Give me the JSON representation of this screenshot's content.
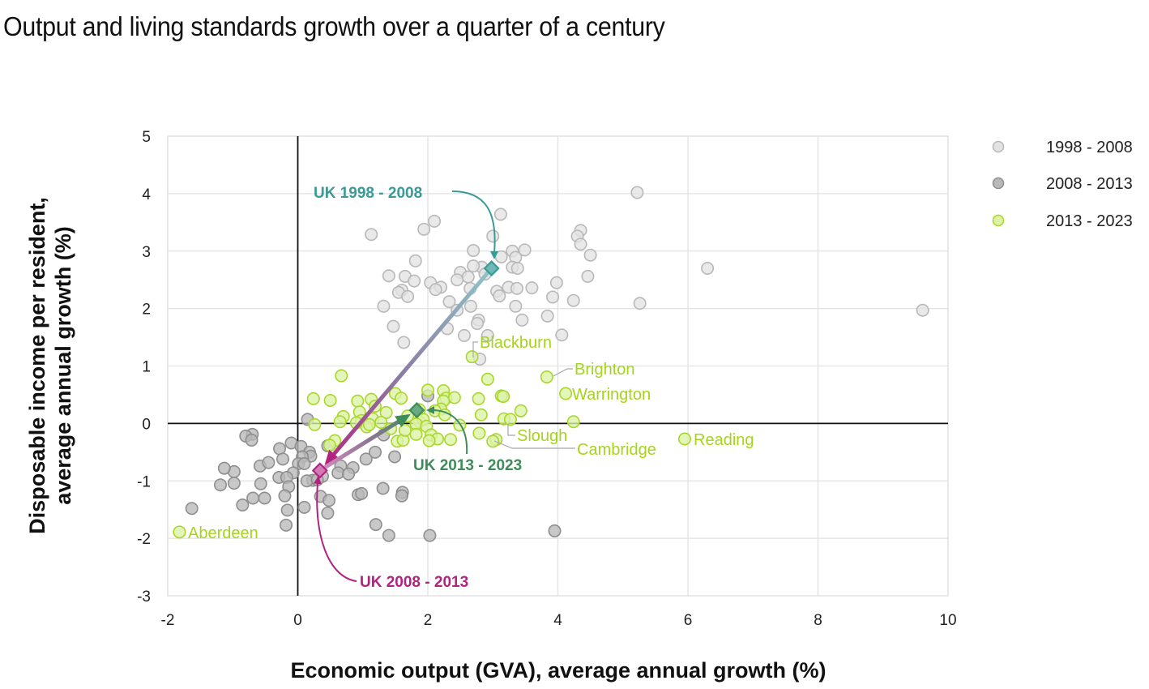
{
  "page": {
    "title": "Output and living standards growth over a quarter of a century"
  },
  "chart_data": {
    "type": "scatter",
    "title": "Output and living standards growth over a quarter of a century",
    "xlabel": "Economic output (GVA), average annual growth (%)",
    "ylabel_lines": [
      "Disposable income per resident,",
      "average annual growth (%)"
    ],
    "xlim": [
      -2,
      10
    ],
    "ylim": [
      -3,
      5
    ],
    "xticks": [
      -2,
      0,
      2,
      4,
      6,
      8,
      10
    ],
    "yticks": [
      5,
      4,
      3,
      2,
      1,
      0,
      -1,
      -2,
      -3
    ],
    "grid": true,
    "legend_position": "top-right",
    "colors": {
      "s1998_fill": "#e3e3e3",
      "s1998_stroke": "#b8b8b8",
      "s2008_fill": "#b9b9b9",
      "s2008_stroke": "#8e8e8e",
      "s2013_fill": "#dcf2a6",
      "s2013_stroke": "#a8d62a",
      "uk1998": "#3a9a96",
      "uk2008": "#b2237f",
      "uk2013": "#3d8c59",
      "label_green": "#a6d41a"
    },
    "series": [
      {
        "name": "1998 - 2008",
        "key": "s1998",
        "points": [
          [
            5.22,
            4.02
          ],
          [
            3.12,
            3.64
          ],
          [
            4.35,
            3.36
          ],
          [
            2.1,
            3.52
          ],
          [
            1.13,
            3.29
          ],
          [
            1.94,
            3.38
          ],
          [
            4.3,
            3.26
          ],
          [
            4.35,
            3.12
          ],
          [
            3.0,
            3.26
          ],
          [
            4.5,
            2.93
          ],
          [
            3.3,
            3.0
          ],
          [
            3.49,
            3.02
          ],
          [
            2.7,
            3.01
          ],
          [
            3.35,
            2.89
          ],
          [
            3.13,
            2.9
          ],
          [
            3.3,
            2.72
          ],
          [
            2.83,
            2.72
          ],
          [
            2.7,
            2.74
          ],
          [
            3.38,
            2.7
          ],
          [
            1.81,
            2.83
          ],
          [
            6.3,
            2.7
          ],
          [
            1.4,
            2.57
          ],
          [
            1.65,
            2.56
          ],
          [
            2.5,
            2.63
          ],
          [
            2.62,
            2.55
          ],
          [
            2.45,
            2.5
          ],
          [
            1.79,
            2.48
          ],
          [
            2.04,
            2.45
          ],
          [
            2.88,
            2.6
          ],
          [
            4.46,
            2.56
          ],
          [
            3.98,
            2.45
          ],
          [
            2.65,
            2.35
          ],
          [
            2.2,
            2.37
          ],
          [
            2.12,
            2.33
          ],
          [
            1.6,
            2.32
          ],
          [
            1.55,
            2.28
          ],
          [
            3.24,
            2.37
          ],
          [
            3.37,
            2.35
          ],
          [
            3.6,
            2.36
          ],
          [
            3.06,
            2.3
          ],
          [
            3.1,
            2.22
          ],
          [
            1.69,
            2.21
          ],
          [
            3.92,
            2.2
          ],
          [
            4.24,
            2.14
          ],
          [
            5.26,
            2.09
          ],
          [
            2.33,
            2.12
          ],
          [
            1.32,
            2.04
          ],
          [
            2.45,
            1.97
          ],
          [
            2.66,
            2.04
          ],
          [
            3.35,
            2.04
          ],
          [
            3.84,
            1.87
          ],
          [
            2.78,
            1.8
          ],
          [
            3.45,
            1.8
          ],
          [
            2.76,
            1.74
          ],
          [
            9.61,
            1.97
          ],
          [
            1.47,
            1.69
          ],
          [
            2.3,
            1.65
          ],
          [
            4.06,
            1.54
          ],
          [
            2.92,
            1.53
          ],
          [
            2.56,
            1.53
          ],
          [
            1.63,
            1.41
          ],
          [
            2.8,
            1.12
          ]
        ]
      },
      {
        "name": "2008 - 2013",
        "key": "s2008",
        "points": [
          [
            2.0,
            0.48
          ],
          [
            0.15,
            0.07
          ],
          [
            -0.7,
            -0.19
          ],
          [
            -0.8,
            -0.22
          ],
          [
            -0.71,
            -0.29
          ],
          [
            -0.1,
            -0.34
          ],
          [
            -0.28,
            -0.44
          ],
          [
            0.05,
            -0.4
          ],
          [
            0.46,
            -0.39
          ],
          [
            0.18,
            -0.5
          ],
          [
            0.2,
            -0.57
          ],
          [
            0.07,
            -0.58
          ],
          [
            -0.23,
            -0.62
          ],
          [
            -0.58,
            -0.74
          ],
          [
            -0.45,
            -0.68
          ],
          [
            0.01,
            -0.7
          ],
          [
            0.1,
            -0.7
          ],
          [
            0.66,
            -0.74
          ],
          [
            0.85,
            -0.77
          ],
          [
            -0.98,
            -0.84
          ],
          [
            -1.13,
            -0.78
          ],
          [
            -0.07,
            -0.86
          ],
          [
            -0.29,
            -0.94
          ],
          [
            -0.17,
            -0.94
          ],
          [
            0.23,
            -0.99
          ],
          [
            0.62,
            -0.86
          ],
          [
            0.38,
            -0.92
          ],
          [
            0.78,
            -0.88
          ],
          [
            0.14,
            -1.0
          ],
          [
            -0.57,
            -1.05
          ],
          [
            -1.19,
            -1.07
          ],
          [
            -0.98,
            -1.04
          ],
          [
            -0.14,
            -1.1
          ],
          [
            -0.2,
            -1.26
          ],
          [
            -0.69,
            -1.3
          ],
          [
            0.35,
            -1.27
          ],
          [
            0.48,
            -1.34
          ],
          [
            -0.51,
            -1.3
          ],
          [
            0.93,
            -1.24
          ],
          [
            0.98,
            -1.22
          ],
          [
            1.31,
            -1.13
          ],
          [
            1.61,
            -1.2
          ],
          [
            1.6,
            -1.26
          ],
          [
            -0.85,
            -1.42
          ],
          [
            -1.63,
            -1.48
          ],
          [
            0.1,
            -1.46
          ],
          [
            0.46,
            -1.56
          ],
          [
            -0.16,
            -1.51
          ],
          [
            1.2,
            -1.76
          ],
          [
            -0.18,
            -1.77
          ],
          [
            1.4,
            -1.95
          ],
          [
            2.03,
            -1.95
          ],
          [
            3.95,
            -1.87
          ],
          [
            1.19,
            -0.5
          ],
          [
            1.49,
            -0.58
          ],
          [
            1.32,
            -0.2
          ],
          [
            0.3,
            -0.98
          ],
          [
            1.05,
            -0.62
          ]
        ]
      },
      {
        "name": "2013 - 2023",
        "key": "s2013",
        "points": [
          [
            2.68,
            1.16
          ],
          [
            3.83,
            0.81
          ],
          [
            0.67,
            0.83
          ],
          [
            4.12,
            0.52
          ],
          [
            2.92,
            0.77
          ],
          [
            2.0,
            0.58
          ],
          [
            2.24,
            0.57
          ],
          [
            1.5,
            0.52
          ],
          [
            1.59,
            0.44
          ],
          [
            2.28,
            0.44
          ],
          [
            1.13,
            0.42
          ],
          [
            0.5,
            0.4
          ],
          [
            0.24,
            0.43
          ],
          [
            0.92,
            0.39
          ],
          [
            1.19,
            0.3
          ],
          [
            2.78,
            0.43
          ],
          [
            3.13,
            0.48
          ],
          [
            3.43,
            0.22
          ],
          [
            2.24,
            0.39
          ],
          [
            2.2,
            0.25
          ],
          [
            2.41,
            0.45
          ],
          [
            3.16,
            0.47
          ],
          [
            2.11,
            0.22
          ],
          [
            1.69,
            0.13
          ],
          [
            2.26,
            0.15
          ],
          [
            1.87,
            0.24
          ],
          [
            0.95,
            0.2
          ],
          [
            1.36,
            0.19
          ],
          [
            2.82,
            0.15
          ],
          [
            1.15,
            0.08
          ],
          [
            1.28,
            0.02
          ],
          [
            4.24,
            0.03
          ],
          [
            0.7,
            0.12
          ],
          [
            0.65,
            0.03
          ],
          [
            1.87,
            0.03
          ],
          [
            0.98,
            0.05
          ],
          [
            1.93,
            0.07
          ],
          [
            1.82,
            -0.01
          ],
          [
            0.26,
            -0.02
          ],
          [
            3.17,
            0.08
          ],
          [
            3.27,
            0.07
          ],
          [
            1.98,
            -0.05
          ],
          [
            1.06,
            -0.06
          ],
          [
            1.43,
            -0.09
          ],
          [
            1.82,
            -0.19
          ],
          [
            2.05,
            -0.2
          ],
          [
            1.53,
            -0.31
          ],
          [
            2.79,
            -0.17
          ],
          [
            5.95,
            -0.27
          ],
          [
            2.15,
            -0.27
          ],
          [
            2.35,
            -0.28
          ],
          [
            3.05,
            -0.28
          ],
          [
            3.0,
            -0.31
          ],
          [
            1.62,
            -0.29
          ],
          [
            2.02,
            -0.3
          ],
          [
            0.57,
            -0.3
          ],
          [
            0.49,
            -0.38
          ],
          [
            -1.82,
            -1.89
          ],
          [
            1.65,
            -0.12
          ],
          [
            1.1,
            -0.02
          ],
          [
            2.49,
            -0.03
          ],
          [
            0.9,
            0.01
          ]
        ]
      }
    ],
    "uk_averages": [
      {
        "label": "UK 1998 - 2008",
        "x": 2.98,
        "y": 2.7,
        "color_key": "uk1998"
      },
      {
        "label": "UK 2008 - 2013",
        "x": 0.34,
        "y": -0.82,
        "color_key": "uk2008"
      },
      {
        "label": "UK 2013 - 2023",
        "x": 1.83,
        "y": 0.23,
        "color_key": "uk2013"
      }
    ],
    "labeled_points": [
      {
        "label": "Blackburn",
        "x": 2.68,
        "y": 1.16
      },
      {
        "label": "Brighton",
        "x": 3.83,
        "y": 0.81
      },
      {
        "label": "Warrington",
        "x": 4.12,
        "y": 0.52
      },
      {
        "label": "Slough",
        "x": 3.27,
        "y": 0.07
      },
      {
        "label": "Cambridge",
        "x": 3.0,
        "y": -0.31
      },
      {
        "label": "Reading",
        "x": 5.95,
        "y": -0.27
      },
      {
        "label": "Aberdeen",
        "x": -1.82,
        "y": -1.89
      }
    ]
  }
}
